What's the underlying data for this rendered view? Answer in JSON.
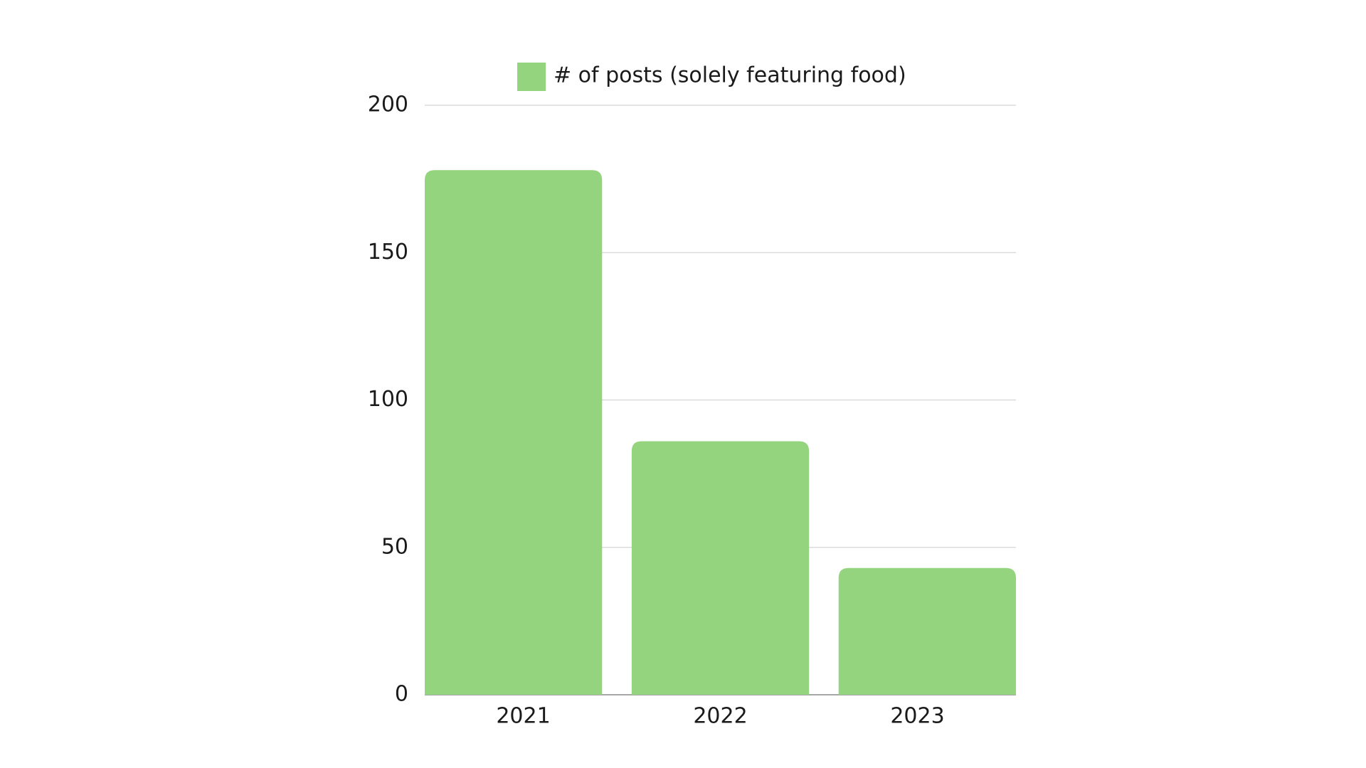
{
  "chart_data": {
    "type": "bar",
    "categories": [
      "2021",
      "2022",
      "2023"
    ],
    "series": [
      {
        "name": "# of posts (solely featuring food)",
        "color": "#95d47f",
        "values": [
          178,
          86,
          43
        ]
      }
    ],
    "ylim": [
      0,
      200
    ],
    "yticks": [
      0,
      50,
      100,
      150,
      200
    ],
    "grid": true,
    "legend": "top"
  }
}
